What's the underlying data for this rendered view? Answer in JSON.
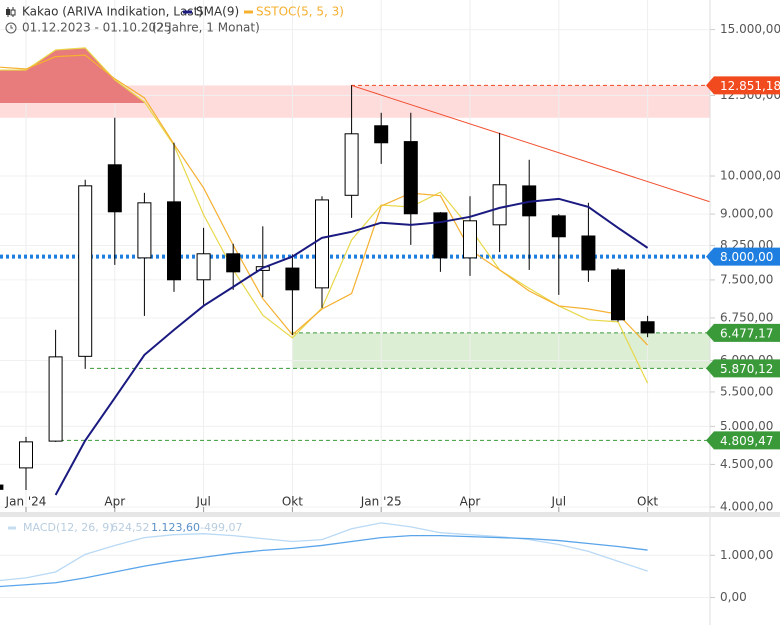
{
  "chart_data": [
    {
      "type": "candlestick",
      "title": "Kakao (ARIVA Indikation, Last)",
      "subtitle": "01.12.2023 - 01.10.2025",
      "period": "(2 Jahre, 1 Monat)",
      "categories": [
        null,
        "Jan '24",
        null,
        null,
        "Apr",
        null,
        null,
        "Jul",
        null,
        null,
        "Okt",
        null,
        null,
        "Jan '25",
        null,
        null,
        "Apr",
        null,
        null,
        "Jul",
        null,
        null,
        "Okt"
      ],
      "log_scale": true,
      "ylim": [
        3912,
        16280
      ],
      "yticks": [
        {
          "value": 15000,
          "label": "15.000,00"
        },
        {
          "value": 12500,
          "label": "12.500,00"
        },
        {
          "value": 10000,
          "label": "10.000,00"
        },
        {
          "value": 9000,
          "label": "9.000,00"
        },
        {
          "value": 8250,
          "label": "8.250,00"
        },
        {
          "value": 7500,
          "label": "7.500,00"
        },
        {
          "value": 6750,
          "label": "6.750,00"
        },
        {
          "value": 6000,
          "label": "6.000,00"
        },
        {
          "value": 5500,
          "label": "5.500,00"
        },
        {
          "value": 5000,
          "label": "5.000,00"
        },
        {
          "value": 4500,
          "label": "4.500,00"
        },
        {
          "value": 4000,
          "label": "4.000,00"
        }
      ],
      "grid": true,
      "series": [
        {
          "name": "Kakao (ARIVA Indikation, Last)",
          "color": "#000000",
          "open": [
            4250,
            4457,
            4800,
            6070,
            10316,
            7972,
            9310,
            7503,
            8063,
            7700,
            7750,
            7337,
            9480,
            11493,
            11000,
            9030,
            7972,
            8736,
            9730,
            8956,
            8470,
            7710,
            6680
          ],
          "high": [
            4260,
            4857,
            6532,
            9897,
            11752,
            9545,
            10964,
            8664,
            8290,
            8700,
            8050,
            9455,
            12851.18,
            11913,
            11913,
            9050,
            9455,
            11271,
            10460,
            9000,
            9285,
            7750,
            6790
          ],
          "low": [
            4200,
            4193,
            4790,
            5863,
            7820,
            6789,
            7256,
            7000,
            7297,
            7150,
            6440,
            6941,
            8905,
            10343,
            8263,
            7670,
            7584,
            8100,
            7710,
            7196,
            7460,
            6680,
            6400
          ],
          "close": [
            4200,
            4790,
            6061,
            9732,
            9057,
            9285,
            7503,
            8063,
            7670,
            7780,
            7297,
            9360,
            11240,
            10964,
            9008,
            7972,
            8834,
            9760,
            8956,
            8452,
            7710,
            6716,
            6477.17
          ]
        },
        {
          "name": "SMA(9)",
          "color": "#1a1a80",
          "values": [
            null,
            null,
            4135,
            4808,
            5409,
            6094,
            6532,
            6981,
            7357,
            7755,
            8000,
            8427,
            8568,
            8787,
            8736,
            8800,
            8932,
            9156,
            9312,
            9388,
            9180,
            8664,
            8196
          ]
        }
      ],
      "sstoc": {
        "name": "SSTOC(5, 5, 3)",
        "color": "#f5b030",
        "signal_color": "#e8d84a",
        "fill_color": "#e87b7b",
        "y2lim": [
          0,
          100
        ],
        "fill_above": 80,
        "k": [
          87,
          86.6,
          89,
          89.3,
          84.7,
          81,
          72,
          63.5,
          52.4,
          42,
          35,
          40,
          43,
          60,
          62.5,
          62,
          51.5,
          47.6,
          43.5,
          40.6,
          40,
          39,
          33
        ],
        "d": [
          86.4,
          86.4,
          90.3,
          90.7,
          84.5,
          80.2,
          71.8,
          58.3,
          47.6,
          38.8,
          34.4,
          40.2,
          53.4,
          60.2,
          59.8,
          62.7,
          55.7,
          47.6,
          44,
          40.6,
          37.9,
          37.5,
          25.6
        ]
      },
      "zones": [
        {
          "from": 11750,
          "to": 12851.18,
          "color": "#ffd6d6"
        },
        {
          "from": 5870.12,
          "to": 6477.17,
          "color": "#d6ebcc"
        }
      ],
      "trendline": {
        "x": [
          12,
          24.1
        ],
        "values": [
          12851.18,
          9312
        ],
        "color": "#f05030"
      },
      "levels": [
        {
          "value": 12851.18,
          "label": "12.851,18",
          "color": "#f04a1e"
        },
        {
          "value": 8000,
          "label": "8.000,00",
          "color": "#1e7fe0"
        },
        {
          "value": 6477.17,
          "label": "6.477,17",
          "color": "#3a9a3a"
        },
        {
          "value": 5870.12,
          "label": "5.870,12",
          "color": "#3a9a3a"
        },
        {
          "value": 4809.47,
          "label": "4.809,47",
          "color": "#3a9a3a"
        }
      ]
    },
    {
      "type": "line",
      "title": "MACD(12, 26, 9)",
      "ylim": [
        -651,
        1907
      ],
      "yticks": [
        {
          "value": 1000,
          "label": "1.000,00"
        },
        {
          "value": 0,
          "label": "0,00"
        }
      ],
      "legend_values": [
        {
          "value": 624.52,
          "label": "624,52"
        },
        {
          "value": 1123.6,
          "label": "1.123,60"
        },
        {
          "value": -499.07,
          "label": "-499,07"
        }
      ],
      "series": [
        {
          "color": "#b9d9f5",
          "values": [
            395,
            465,
            605,
            1023,
            1233,
            1419,
            1488,
            1512,
            1465,
            1395,
            1326,
            1372,
            1628,
            1767,
            1674,
            1535,
            1488,
            1442,
            1372,
            1256,
            1093,
            860,
            624.52
          ]
        },
        {
          "color": "#5aa5ea",
          "values": [
            256,
            302,
            349,
            465,
            605,
            744,
            860,
            953,
            1047,
            1116,
            1163,
            1233,
            1326,
            1419,
            1465,
            1465,
            1442,
            1419,
            1395,
            1349,
            1279,
            1209,
            1123.6
          ]
        }
      ]
    }
  ]
}
